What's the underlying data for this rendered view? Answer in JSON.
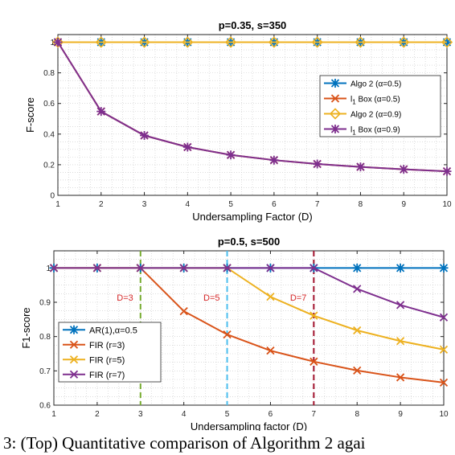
{
  "chart_data": [
    {
      "type": "line",
      "title": "p=0.35, s=350",
      "xlabel": "Undersampling Factor (D)",
      "ylabel": "F-score",
      "xlim": [
        1,
        10
      ],
      "ylim": [
        0,
        1.05
      ],
      "x": [
        1,
        2,
        3,
        4,
        5,
        6,
        7,
        8,
        9,
        10
      ],
      "xticks": [
        "1",
        "2",
        "3",
        "4",
        "5",
        "6",
        "7",
        "8",
        "9",
        "10"
      ],
      "yticks": [
        0,
        0.2,
        0.4,
        0.6,
        0.8,
        1
      ],
      "yticklabels": [
        "0",
        "0.2",
        "0.4",
        "0.6",
        "0.8",
        "1"
      ],
      "grid": "minor dotted",
      "legend_position": "right",
      "series": [
        {
          "name": "Algo 2 (α=0.5)",
          "color": "#0072BD",
          "marker": "asterisk",
          "values": [
            1,
            1,
            1,
            1,
            1,
            1,
            1,
            1,
            1,
            1
          ]
        },
        {
          "name": "l₁ Box (α=0.5)",
          "color": "#D95319",
          "marker": "x",
          "values": [
            1,
            0.548,
            0.391,
            0.315,
            0.264,
            0.23,
            0.205,
            0.186,
            0.17,
            0.157
          ]
        },
        {
          "name": "Algo 2 (α=0.9)",
          "color": "#EDB120",
          "marker": "diamond",
          "values": [
            1,
            1,
            1,
            1,
            1,
            1,
            1,
            1,
            1,
            1
          ]
        },
        {
          "name": "l₁ Box (α=0.9)",
          "color": "#7E2F8E",
          "marker": "asterisk",
          "values": [
            1,
            0.548,
            0.391,
            0.315,
            0.264,
            0.23,
            0.205,
            0.186,
            0.17,
            0.157
          ]
        }
      ]
    },
    {
      "type": "line",
      "title": "p=0.5, s=500",
      "xlabel": "Undersampling factor (D)",
      "ylabel": "F1-score",
      "xlim": [
        1,
        10
      ],
      "ylim": [
        0.6,
        1.05
      ],
      "x": [
        1,
        2,
        3,
        4,
        5,
        6,
        7,
        8,
        9,
        10
      ],
      "xticks": [
        "1",
        "2",
        "3",
        "4",
        "5",
        "6",
        "7",
        "8",
        "9",
        "10"
      ],
      "yticks": [
        0.6,
        0.7,
        0.8,
        0.9,
        1
      ],
      "yticklabels": [
        "0.6",
        "0.7",
        "0.8",
        "0.9",
        "1"
      ],
      "grid": "minor dotted",
      "legend_position": "left",
      "series": [
        {
          "name": "AR(1),α=0.5",
          "color": "#0072BD",
          "marker": "asterisk",
          "values": [
            1,
            1,
            1,
            1,
            1,
            1,
            1,
            1,
            1,
            1
          ]
        },
        {
          "name": "FIR (r=3)",
          "color": "#D95319",
          "marker": "x",
          "values": [
            1,
            1,
            1,
            0.874,
            0.806,
            0.759,
            0.727,
            0.701,
            0.681,
            0.666
          ]
        },
        {
          "name": "FIR (r=5)",
          "color": "#EDB120",
          "marker": "x",
          "values": [
            1,
            1,
            1,
            1,
            1,
            0.916,
            0.861,
            0.818,
            0.787,
            0.762
          ]
        },
        {
          "name": "FIR (r=7)",
          "color": "#7E2F8E",
          "marker": "x",
          "values": [
            1,
            1,
            1,
            1,
            1,
            1,
            1,
            0.939,
            0.892,
            0.856
          ]
        }
      ],
      "vlines": [
        {
          "x": 3,
          "label": "D=3",
          "color": "#77AC30",
          "label_color": "#D62728"
        },
        {
          "x": 5,
          "label": "D=5",
          "color": "#4DBEEE",
          "label_color": "#D62728"
        },
        {
          "x": 7,
          "label": "D=7",
          "color": "#A2142F",
          "label_color": "#D62728"
        }
      ]
    }
  ],
  "caption": "3: (Top) Quantitative comparison of Algorithm 2 agai"
}
